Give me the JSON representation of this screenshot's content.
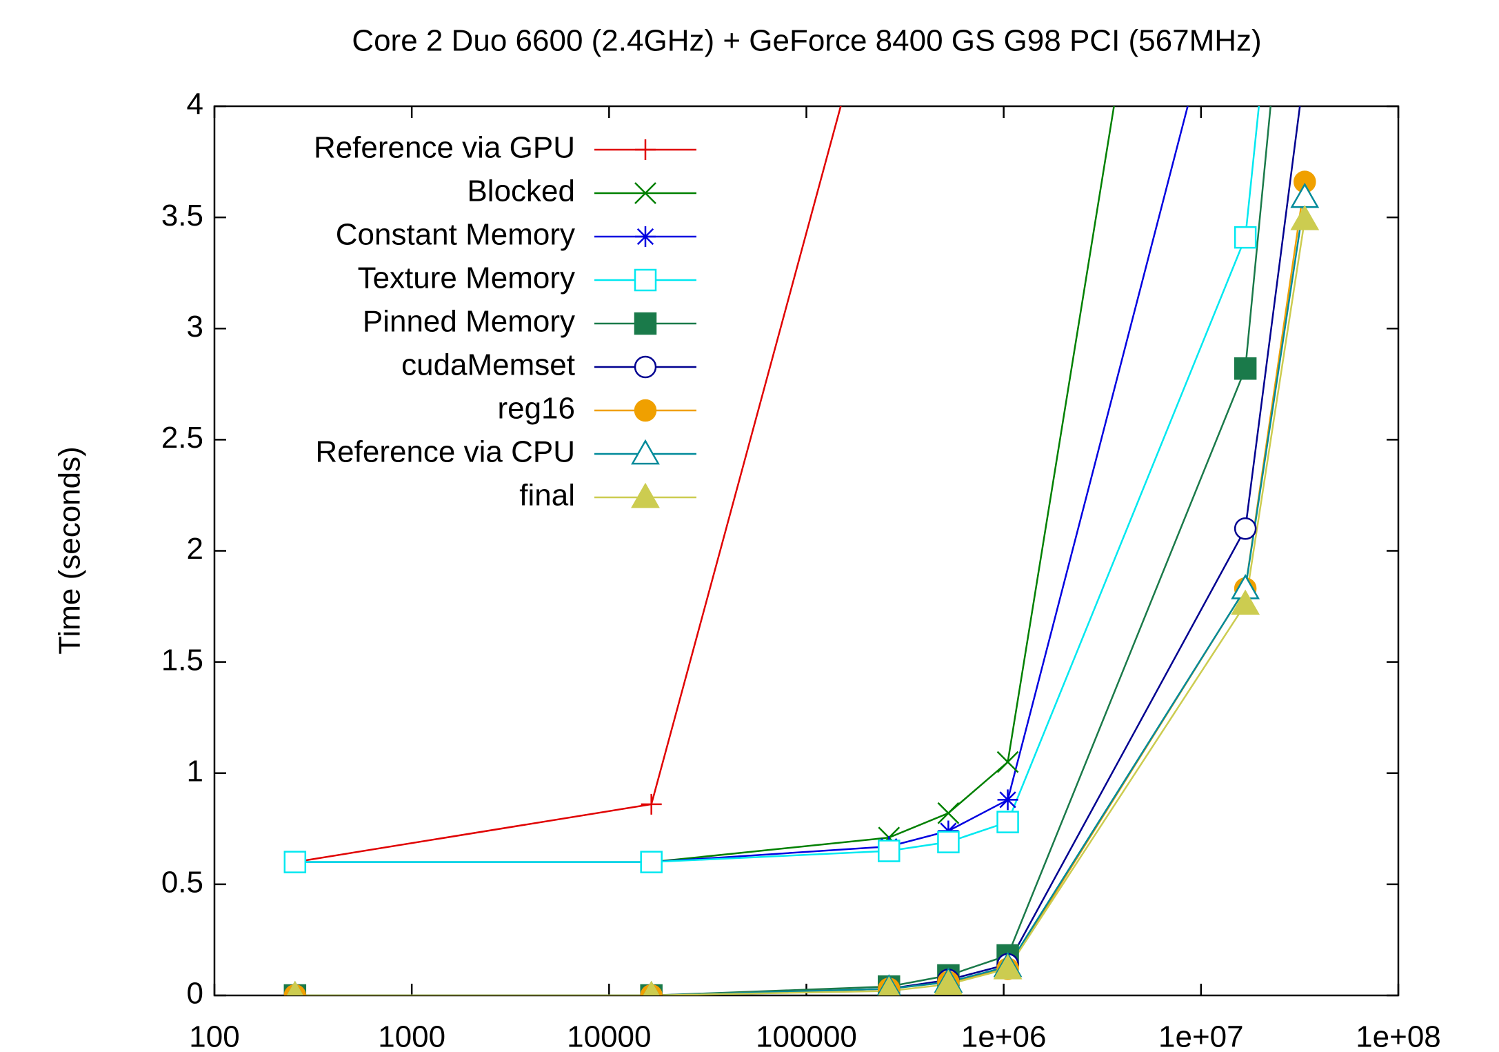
{
  "chart_data": {
    "type": "line",
    "title": "Core 2 Duo 6600 (2.4GHz) + GeForce 8400 GS G98 PCI (567MHz)",
    "y_label": "Time (seconds)",
    "x_log": true,
    "legend": "top left",
    "x": [
      256,
      16384,
      262144,
      524288,
      1048576,
      16777216,
      33554432
    ],
    "xlim": [
      100,
      100000000
    ],
    "xticks": [
      100,
      1000,
      10000,
      100000,
      {
        "value": 1000000,
        "label": "1e+06"
      },
      {
        "value": 10000000,
        "label": "1e+07"
      },
      {
        "value": 100000000,
        "label": "1e+08"
      }
    ],
    "ylim": [
      0,
      4
    ],
    "yticks": [
      0,
      0.5,
      1,
      1.5,
      2,
      2.5,
      3,
      3.5,
      4
    ],
    "series": [
      {
        "name": "Reference via GPU",
        "color": "#e00000",
        "marker": "plus",
        "values": [
          0.6,
          0.86,
          4.8,
          null,
          null,
          null,
          null
        ]
      },
      {
        "name": "Blocked",
        "color": "#008000",
        "marker": "cross",
        "values": [
          0.6,
          0.6,
          0.71,
          0.82,
          1.05,
          7.65,
          null
        ]
      },
      {
        "name": "Constant Memory",
        "color": "#0000e0",
        "marker": "star",
        "values": [
          0.6,
          0.6,
          0.67,
          0.74,
          0.88,
          5.0,
          null
        ]
      },
      {
        "name": "Texture Memory",
        "color": "#00e8f0",
        "marker": "square-open",
        "values": [
          0.6,
          0.6,
          0.65,
          0.69,
          0.78,
          3.41,
          6.0
        ]
      },
      {
        "name": "Pinned Memory",
        "color": "#1a7a4a",
        "marker": "square",
        "values": [
          0,
          0,
          0.04,
          0.09,
          0.18,
          2.82,
          5.6
        ]
      },
      {
        "name": "cudaMemset",
        "color": "#000090",
        "marker": "circle-open",
        "values": [
          0,
          0,
          0.03,
          0.07,
          0.14,
          2.1,
          4.17
        ]
      },
      {
        "name": "reg16",
        "color": "#f0a000",
        "marker": "circle",
        "values": [
          0,
          0,
          0.03,
          0.06,
          0.12,
          1.83,
          3.66
        ]
      },
      {
        "name": "Reference via CPU",
        "color": "#008a9a",
        "marker": "triangle-open",
        "values": [
          0,
          0,
          0.03,
          0.06,
          0.13,
          1.83,
          3.59
        ]
      },
      {
        "name": "final",
        "color": "#cccc50",
        "marker": "triangle",
        "values": [
          0,
          0,
          0.02,
          0.05,
          0.12,
          1.76,
          3.49
        ]
      }
    ]
  }
}
